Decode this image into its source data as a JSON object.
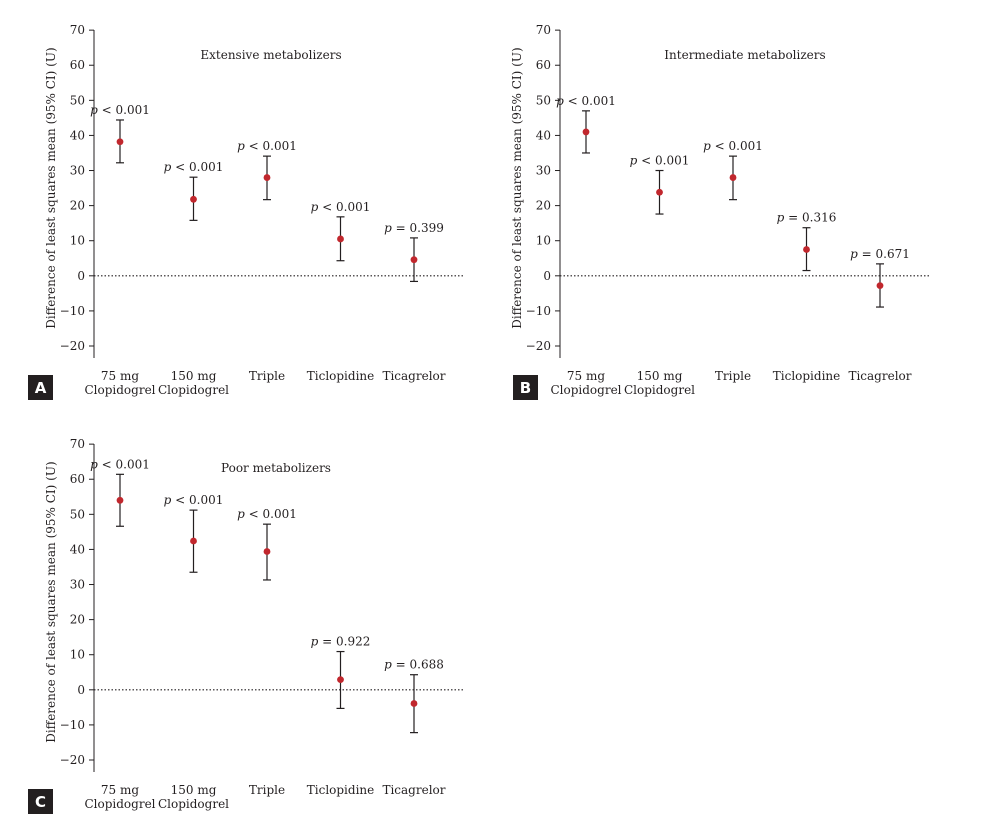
{
  "colors": {
    "marker": "#c1272d",
    "ink": "#231f20",
    "badge": "#231f20"
  },
  "chart_data": [
    {
      "type": "scatter",
      "panel": "A",
      "title": "Extensive metabolizers",
      "ylabel": "Difference of least squares mean (95% CI) (U)",
      "xlabel": "",
      "ylim": [
        -20,
        70
      ],
      "yticks": [
        -20,
        -10,
        0,
        10,
        20,
        30,
        40,
        50,
        60,
        70
      ],
      "yticklabels": [
        "−20",
        "−10",
        "0",
        "10",
        "20",
        "30",
        "40",
        "50",
        "60",
        "70"
      ],
      "reference_line": 0,
      "categories": [
        [
          "75 mg",
          "Clopidogrel"
        ],
        [
          "150 mg",
          "Clopidogrel"
        ],
        [
          "Triple"
        ],
        [
          "Ticlopidine"
        ],
        [
          "Ticagrelor"
        ]
      ],
      "series": [
        {
          "values": [
            38.2,
            21.8,
            28.0,
            10.5,
            4.6
          ],
          "ci_lower": [
            32.2,
            15.8,
            21.7,
            4.3,
            -1.6
          ],
          "ci_upper": [
            44.4,
            28.1,
            34.1,
            16.8,
            10.8
          ],
          "p_labels": [
            "p < 0.001",
            "p < 0.001",
            "p < 0.001",
            "p < 0.001",
            "p = 0.399"
          ]
        }
      ]
    },
    {
      "type": "scatter",
      "panel": "B",
      "title": "Intermediate metabolizers",
      "ylabel": "Difference of least squares mean (95% CI) (U)",
      "xlabel": "",
      "ylim": [
        -20,
        70
      ],
      "yticks": [
        -20,
        -10,
        0,
        10,
        20,
        30,
        40,
        50,
        60,
        70
      ],
      "yticklabels": [
        "−20",
        "−10",
        "0",
        "10",
        "20",
        "30",
        "40",
        "50",
        "60",
        "70"
      ],
      "reference_line": 0,
      "categories": [
        [
          "75 mg",
          "Clopidogrel"
        ],
        [
          "150 mg",
          "Clopidogrel"
        ],
        [
          "Triple"
        ],
        [
          "Ticlopidine"
        ],
        [
          "Ticagrelor"
        ]
      ],
      "series": [
        {
          "values": [
            41.0,
            23.8,
            28.0,
            7.5,
            -2.8
          ],
          "ci_lower": [
            35.0,
            17.6,
            21.7,
            1.5,
            -8.9
          ],
          "ci_upper": [
            47.0,
            30.0,
            34.1,
            13.7,
            3.4
          ],
          "p_labels": [
            "p < 0.001",
            "p < 0.001",
            "p < 0.001",
            "p = 0.316",
            "p = 0.671"
          ]
        }
      ]
    },
    {
      "type": "scatter",
      "panel": "C",
      "title": "Poor metabolizers",
      "ylabel": "Difference of least squares mean (95% CI) (U)",
      "xlabel": "",
      "ylim": [
        -20,
        70
      ],
      "yticks": [
        -20,
        -10,
        0,
        10,
        20,
        30,
        40,
        50,
        60,
        70
      ],
      "yticklabels": [
        "−20",
        "−10",
        "0",
        "10",
        "20",
        "30",
        "40",
        "50",
        "60",
        "70"
      ],
      "reference_line": 0,
      "categories": [
        [
          "75 mg",
          "Clopidogrel"
        ],
        [
          "150 mg",
          "Clopidogrel"
        ],
        [
          "Triple"
        ],
        [
          "Ticlopidine"
        ],
        [
          "Ticagrelor"
        ]
      ],
      "series": [
        {
          "values": [
            54.0,
            42.4,
            39.4,
            2.9,
            -3.9
          ],
          "ci_lower": [
            46.6,
            33.5,
            31.3,
            -5.3,
            -12.2
          ],
          "ci_upper": [
            61.4,
            51.2,
            47.2,
            10.9,
            4.3
          ],
          "p_labels": [
            "p < 0.001",
            "p < 0.001",
            "p < 0.001",
            "p = 0.922",
            "p = 0.688"
          ]
        }
      ]
    }
  ]
}
